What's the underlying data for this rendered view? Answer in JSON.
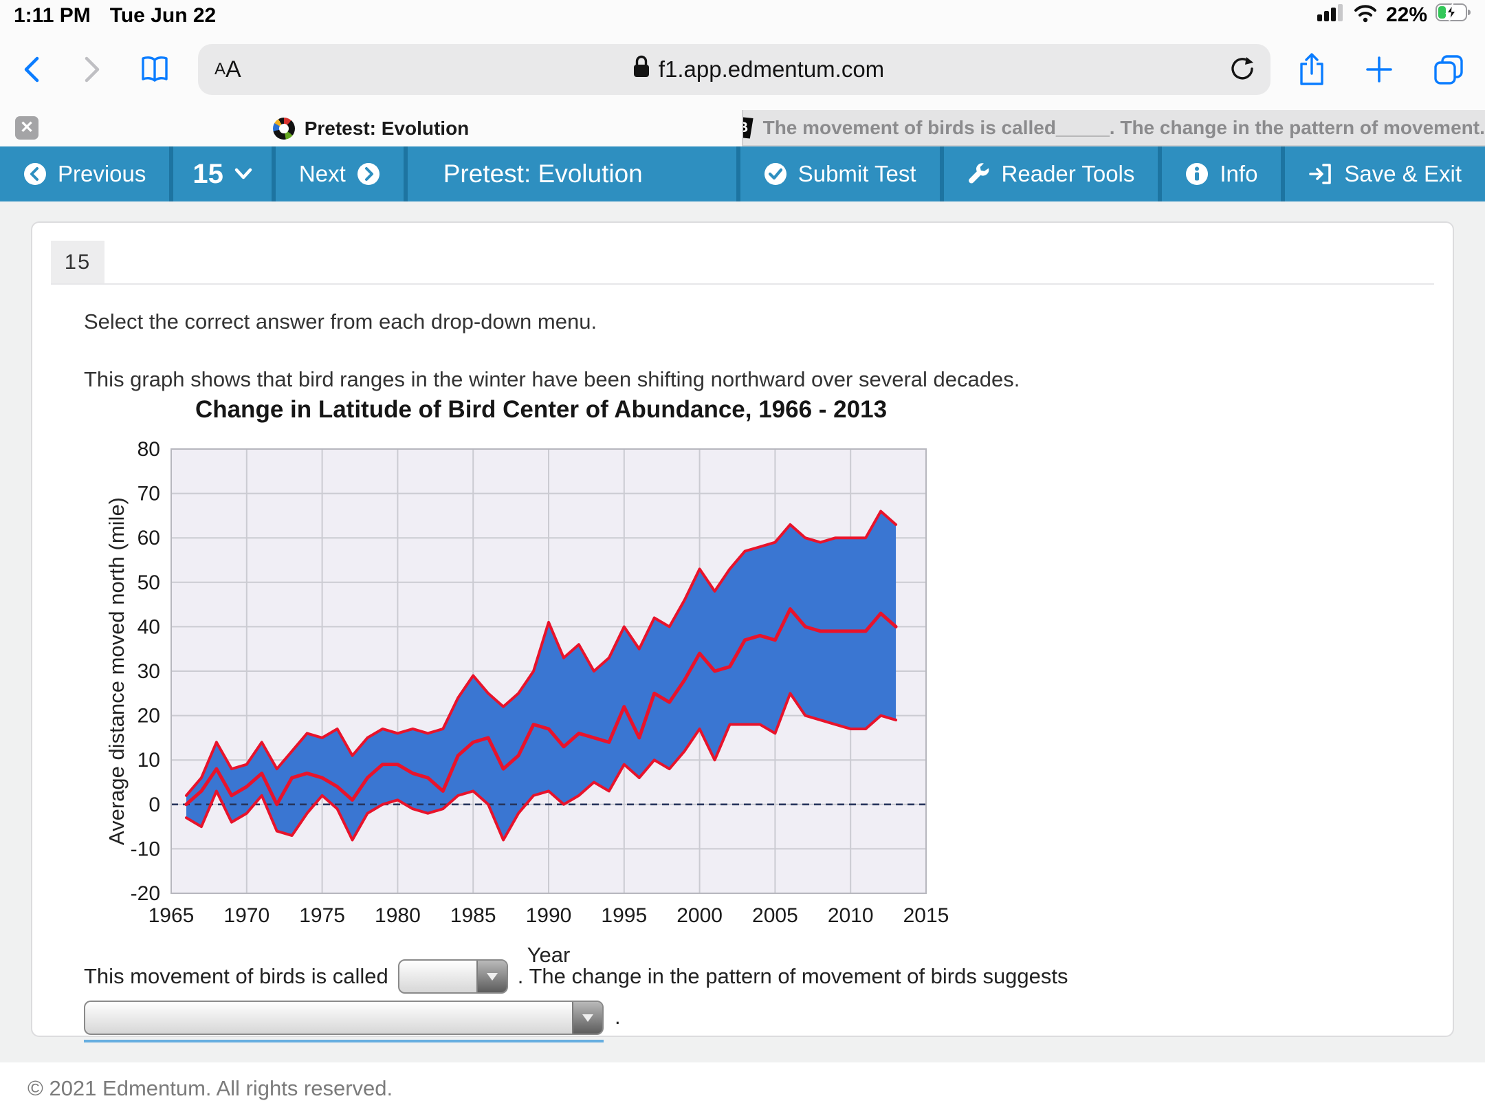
{
  "status_bar": {
    "time": "1:11 PM",
    "date": "Tue Jun 22",
    "battery_percent": "22%"
  },
  "browser": {
    "text_size_label_small": "A",
    "text_size_label_big": "A",
    "url": "f1.app.edmentum.com"
  },
  "tabs": [
    {
      "title": "Pretest: Evolution",
      "active": true
    },
    {
      "title": "The movement of birds is called_____. The change in the pattern of movement...",
      "active": false
    }
  ],
  "toolbar": {
    "previous_label": "Previous",
    "question_number": "15",
    "next_label": "Next",
    "title": "Pretest: Evolution",
    "submit_label": "Submit Test",
    "reader_tools_label": "Reader Tools",
    "info_label": "Info",
    "save_exit_label": "Save & Exit"
  },
  "question": {
    "number": "15",
    "instruction": "Select the correct answer from each drop-down menu.",
    "description": "This graph shows that bird ranges in the winter have been shifting northward over several decades.",
    "sentence_part1": "This movement of birds is called",
    "dropdown1_value": "",
    "sentence_part2": ". The change in the pattern of movement of birds suggests",
    "dropdown2_value": "",
    "sentence_end": "."
  },
  "footer": {
    "copyright": "© 2021 Edmentum. All rights reserved."
  },
  "colors": {
    "toolbar_blue": "#2e8fc0",
    "toolbar_gap_blue": "#1d74a1",
    "safari_accent_blue": "#0a7cff",
    "battery_green": "#33c759"
  },
  "chart_data": {
    "type": "area",
    "title": "Change in Latitude of Bird Center of Abundance, 1966 - 2013",
    "xlabel": "Year",
    "ylabel": "Average distance moved north (mile)",
    "xlim": [
      1965,
      2015
    ],
    "ylim": [
      -20,
      80
    ],
    "x_ticks": [
      1965,
      1970,
      1975,
      1980,
      1985,
      1990,
      1995,
      2000,
      2005,
      2010,
      2015
    ],
    "y_ticks": [
      80,
      70,
      60,
      50,
      40,
      30,
      20,
      10,
      0,
      -10,
      -20
    ],
    "grid": true,
    "legend": "none",
    "plot_bg": "#f0eef5",
    "grid_color": "#cbcbd2",
    "border_color": "#b7b7be",
    "band_fill": "#3a76d2",
    "line_color": "#e8132b",
    "zero_line": {
      "y": 0,
      "color": "#27355c",
      "style": "dashed"
    },
    "years": [
      1966,
      1967,
      1968,
      1969,
      1970,
      1971,
      1972,
      1973,
      1974,
      1975,
      1976,
      1977,
      1978,
      1979,
      1980,
      1981,
      1982,
      1983,
      1984,
      1985,
      1986,
      1987,
      1988,
      1989,
      1990,
      1991,
      1992,
      1993,
      1994,
      1995,
      1996,
      1997,
      1998,
      1999,
      2000,
      2001,
      2002,
      2003,
      2004,
      2005,
      2006,
      2007,
      2008,
      2009,
      2010,
      2011,
      2012,
      2013
    ],
    "series": [
      {
        "name": "upper bound",
        "values": [
          2,
          6,
          14,
          8,
          9,
          14,
          8,
          12,
          16,
          15,
          17,
          11,
          15,
          17,
          16,
          17,
          16,
          17,
          24,
          29,
          25,
          22,
          25,
          30,
          41,
          33,
          36,
          30,
          33,
          40,
          35,
          42,
          40,
          46,
          53,
          48,
          53,
          57,
          58,
          59,
          63,
          60,
          59,
          60,
          60,
          60,
          66,
          63
        ]
      },
      {
        "name": "mean distance moved north",
        "values": [
          0,
          3,
          8,
          2,
          4,
          7,
          0,
          6,
          7,
          6,
          4,
          1,
          6,
          9,
          9,
          7,
          6,
          3,
          11,
          14,
          15,
          8,
          11,
          18,
          17,
          13,
          16,
          15,
          14,
          22,
          15,
          25,
          23,
          28,
          34,
          30,
          31,
          37,
          38,
          37,
          44,
          40,
          39,
          39,
          39,
          39,
          43,
          40
        ]
      },
      {
        "name": "lower bound",
        "values": [
          -3,
          -5,
          3,
          -4,
          -2,
          2,
          -6,
          -7,
          -2,
          2,
          -1,
          -8,
          -2,
          0,
          1,
          -1,
          -2,
          -1,
          2,
          3,
          0,
          -8,
          -2,
          2,
          3,
          0,
          2,
          5,
          3,
          9,
          6,
          10,
          8,
          12,
          17,
          10,
          18,
          18,
          18,
          16,
          25,
          20,
          19,
          18,
          17,
          17,
          20,
          19
        ]
      }
    ]
  }
}
